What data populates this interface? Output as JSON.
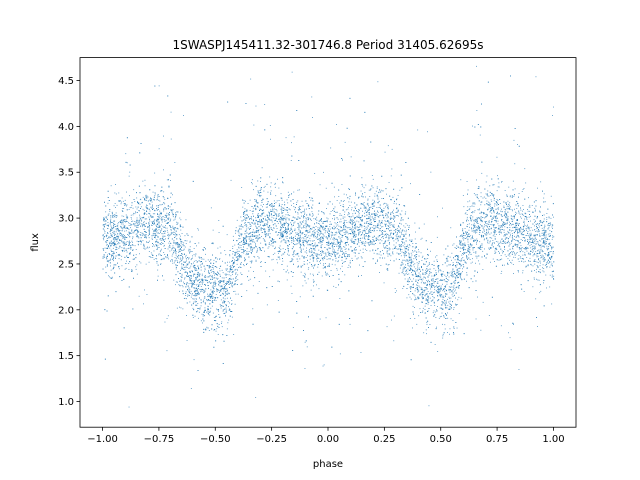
{
  "chart_data": {
    "type": "scatter",
    "title": "1SWASPJ145411.32-301746.8 Period 31405.62695s",
    "xlabel": "phase",
    "ylabel": "flux",
    "xlim": [
      -1.1,
      1.1
    ],
    "ylim": [
      0.72,
      4.75
    ],
    "x_ticks": [
      -1.0,
      -0.75,
      -0.5,
      -0.25,
      0.0,
      0.25,
      0.5,
      0.75,
      1.0
    ],
    "x_tick_labels": [
      "−1.00",
      "−0.75",
      "−0.50",
      "−0.25",
      "0.00",
      "0.25",
      "0.50",
      "0.75",
      "1.00"
    ],
    "y_ticks": [
      1.0,
      1.5,
      2.0,
      2.5,
      3.0,
      3.5,
      4.0,
      4.5
    ],
    "y_tick_labels": [
      "1.0",
      "1.5",
      "2.0",
      "2.5",
      "3.0",
      "3.5",
      "4.0",
      "4.5"
    ],
    "grid": false,
    "marker_color": "#1f77b4",
    "series": [
      {
        "description_points": "phase-folded light curve, dense cloud of points",
        "phase_profile": [
          {
            "x": -1.0,
            "y": 2.75
          },
          {
            "x": -0.9,
            "y": 2.85
          },
          {
            "x": -0.8,
            "y": 2.95
          },
          {
            "x": -0.7,
            "y": 2.9
          },
          {
            "x": -0.62,
            "y": 2.4
          },
          {
            "x": -0.55,
            "y": 2.22
          },
          {
            "x": -0.45,
            "y": 2.2
          },
          {
            "x": -0.38,
            "y": 2.8
          },
          {
            "x": -0.3,
            "y": 2.95
          },
          {
            "x": -0.2,
            "y": 2.9
          },
          {
            "x": -0.1,
            "y": 2.8
          },
          {
            "x": 0.0,
            "y": 2.7
          },
          {
            "x": 0.1,
            "y": 2.85
          },
          {
            "x": 0.2,
            "y": 2.95
          },
          {
            "x": 0.3,
            "y": 2.9
          },
          {
            "x": 0.38,
            "y": 2.4
          },
          {
            "x": 0.45,
            "y": 2.22
          },
          {
            "x": 0.55,
            "y": 2.2
          },
          {
            "x": 0.62,
            "y": 2.8
          },
          {
            "x": 0.7,
            "y": 2.95
          },
          {
            "x": 0.8,
            "y": 2.9
          },
          {
            "x": 0.9,
            "y": 2.8
          },
          {
            "x": 1.0,
            "y": 2.7
          }
        ]
      }
    ]
  }
}
